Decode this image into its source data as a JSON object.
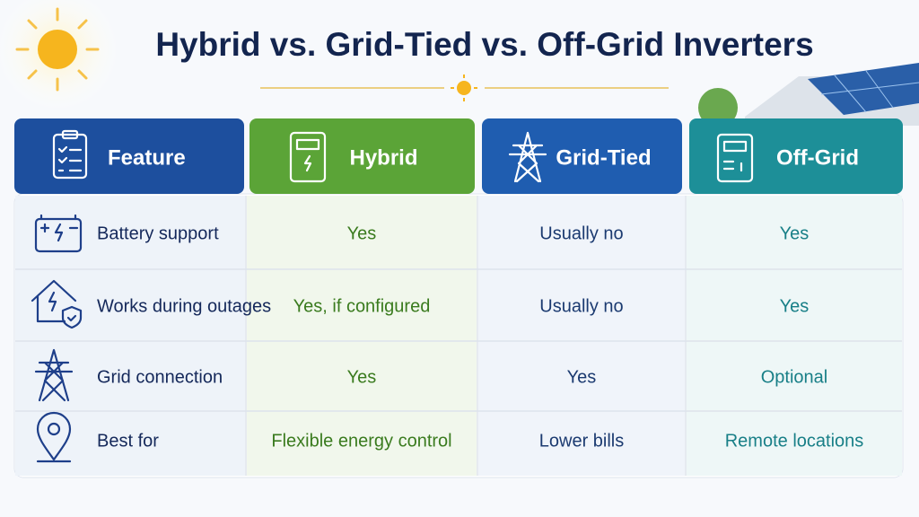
{
  "header": {
    "title": "Hybrid vs. Grid-Tied vs. Off-Grid Inverters"
  },
  "table": {
    "headers": [
      "Feature",
      "Hybrid",
      "Grid-Tied",
      "Off-Grid"
    ],
    "rows": [
      [
        "Battery support",
        "Yes",
        "Usually no",
        "Yes"
      ],
      [
        "Works during outages",
        "Yes, if configured",
        "Usually no",
        "Yes"
      ],
      [
        "Grid connection",
        "Yes",
        "Yes",
        "Optional"
      ],
      [
        "Best for",
        "Flexible energy control",
        "Lower bills",
        "Remote locations"
      ]
    ]
  }
}
